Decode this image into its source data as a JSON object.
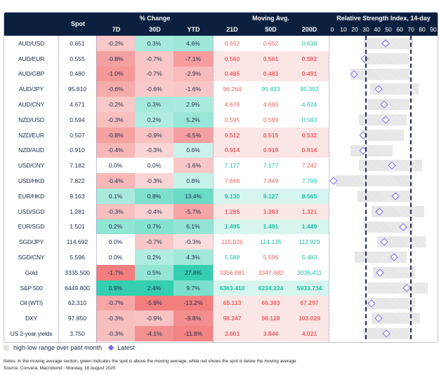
{
  "header": {
    "spot": "Spot",
    "pct_change": "% Change",
    "pct_cols": [
      "7D",
      "30D",
      "YTD"
    ],
    "moving_avg": "Moving Avg.",
    "ma_cols": [
      "21D",
      "50D",
      "200D"
    ],
    "rsi_title": "Relative Strength Index, 14-day",
    "rsi_ticks": [
      "0",
      "10",
      "20",
      "30",
      "40",
      "50",
      "60",
      "70",
      "80",
      "90"
    ]
  },
  "colors": {
    "header_bg": "#0b1f3f",
    "green": "#1ec9a8",
    "red": "#f07070",
    "latest": "#7b68ee"
  },
  "chart_data": {
    "type": "table",
    "rsi_axis": {
      "range": [
        0,
        90
      ],
      "reference_lines": [
        30,
        70
      ]
    },
    "rows": [
      {
        "name": "AUD/USD",
        "spot": "0.651",
        "d7": "-0.2%",
        "d30": "0.3%",
        "ytd": "4.6%",
        "ma21": "0.652",
        "ma50": "0.652",
        "ma200": "0.638",
        "rsi_low": 28,
        "rsi_high": 72,
        "rsi": 47.5
      },
      {
        "name": "AUD/EUR",
        "spot": "0.555",
        "d7": "-0.8%",
        "d30": "-0.7%",
        "ytd": "-7.1%",
        "ma21": "0.560",
        "ma50": "0.561",
        "ma200": "0.582",
        "rsi_low": 29,
        "rsi_high": 69,
        "rsi": 29
      },
      {
        "name": "AUD/GBP",
        "spot": "0.480",
        "d7": "-1.0%",
        "d30": "-0.7%",
        "ytd": "-2.9%",
        "ma21": "0.485",
        "ma50": "0.483",
        "ma200": "0.491",
        "rsi_low": 16,
        "rsi_high": 69,
        "rsi": 19.5
      },
      {
        "name": "AUD/JPY",
        "spot": "95.810",
        "d7": "-0.6%",
        "d30": "-0.6%",
        "ytd": "-1.6%",
        "ma21": "96.264",
        "ma50": "95.493",
        "ma200": "95.302",
        "rsi_low": 34,
        "rsi_high": 77,
        "rsi": 41
      },
      {
        "name": "AUD/CNY",
        "spot": "4.671",
        "d7": "-0.2%",
        "d30": "0.3%",
        "ytd": "2.9%",
        "ma21": "4.678",
        "ma50": "4.680",
        "ma200": "4.624",
        "rsi_low": 31,
        "rsi_high": 69,
        "rsi": 46
      },
      {
        "name": "NZD/USD",
        "spot": "0.594",
        "d7": "-0.3%",
        "d30": "0.2%",
        "ytd": "5.2%",
        "ma21": "0.595",
        "ma50": "0.599",
        "ma200": "0.583",
        "rsi_low": 24,
        "rsi_high": 66,
        "rsi": 47.5
      },
      {
        "name": "NZD/EUR",
        "spot": "0.507",
        "d7": "-0.8%",
        "d30": "-0.9%",
        "ytd": "-6.5%",
        "ma21": "0.512",
        "ma50": "0.515",
        "ma200": "0.532",
        "rsi_low": 27,
        "rsi_high": 64,
        "rsi": 27.5
      },
      {
        "name": "NZD/AUD",
        "spot": "0.910",
        "d7": "-0.4%",
        "d30": "-0.3%",
        "ytd": "0.6%",
        "ma21": "0.914",
        "ma50": "0.919",
        "ma200": "0.914",
        "rsi_low": 16,
        "rsi_high": 54,
        "rsi": 27.5
      },
      {
        "name": "USD/CNY",
        "spot": "7.182",
        "d7": "0.0%",
        "d30": "0.0%",
        "ytd": "-1.6%",
        "ma21": "7.177",
        "ma50": "7.177",
        "ma200": "7.242",
        "rsi_low": 24,
        "rsi_high": 80,
        "rsi": 53
      },
      {
        "name": "USD/HKD",
        "spot": "7.822",
        "d7": "-0.4%",
        "d30": "-0.3%",
        "ytd": "0.8%",
        "ma21": "7.848",
        "ma50": "7.849",
        "ma200": "7.799",
        "rsi_low": 3,
        "rsi_high": 70,
        "rsi": 1
      },
      {
        "name": "EUR/HKD",
        "spot": "9.163",
        "d7": "0.1%",
        "d30": "0.8%",
        "ytd": "13.4%",
        "ma21": "9.130",
        "ma50": "9.127",
        "ma200": "8.565",
        "rsi_low": 22.5,
        "rsi_high": 70.5,
        "rsi": 56
      },
      {
        "name": "USD/SGD",
        "spot": "1.281",
        "d7": "-0.3%",
        "d30": "-0.4%",
        "ytd": "-5.7%",
        "ma21": "1.285",
        "ma50": "1.283",
        "ma200": "1.321",
        "rsi_low": 35,
        "rsi_high": 82,
        "rsi": 42
      },
      {
        "name": "EUR/SGD",
        "spot": "1.501",
        "d7": "0.2%",
        "d30": "0.7%",
        "ytd": "6.1%",
        "ma21": "1.495",
        "ma50": "1.491",
        "ma200": "1.449",
        "rsi_low": 28,
        "rsi_high": 72,
        "rsi": 63
      },
      {
        "name": "SGD/JPY",
        "spot": "114.692",
        "d7": "0.0%",
        "d30": "-0.7%",
        "ytd": "-0.3%",
        "ma21": "115.026",
        "ma50": "114.135",
        "ma200": "112.929",
        "rsi_low": 40,
        "rsi_high": 83,
        "rsi": 46
      },
      {
        "name": "SGD/CNY",
        "spot": "5.596",
        "d7": "0.0%",
        "d30": "0.2%",
        "ytd": "4.3%",
        "ma21": "5.588",
        "ma50": "5.596",
        "ma200": "5.483",
        "rsi_low": 20,
        "rsi_high": 66,
        "rsi": 55
      },
      {
        "name": "Gold",
        "spot": "3335.500",
        "d7": "-1.7%",
        "d30": "0.5%",
        "ytd": "27.8%",
        "ma21": "3356.881",
        "ma50": "3347.682",
        "ma200": "3036.411",
        "rsi_low": 36,
        "rsi_high": 74,
        "rsi": 42.5
      },
      {
        "name": "S&P 500",
        "spot": "6449.800",
        "d7": "0.9%",
        "d30": "2.4%",
        "ytd": "9.7%",
        "ma21": "6363.410",
        "ma50": "6234.224",
        "ma200": "5933.734",
        "rsi_low": 31,
        "rsi_high": 85,
        "rsi": 66
      },
      {
        "name": "Oil (WTI)",
        "spot": "62.310",
        "d7": "-0.7%",
        "d30": "-5.9%",
        "ytd": "-13.2%",
        "ma21": "65.113",
        "ma50": "66.383",
        "ma200": "67.297",
        "rsi_low": 29,
        "rsi_high": 74,
        "rsi": 35
      },
      {
        "name": "DXY",
        "spot": "97.850",
        "d7": "-0.3%",
        "d30": "-0.9%",
        "ytd": "-9.8%",
        "ma21": "98.347",
        "ma50": "98.128",
        "ma200": "103.029",
        "rsi_low": 35,
        "rsi_high": 78,
        "rsi": 41
      },
      {
        "name": "US 2-year yields",
        "spot": "3.750",
        "d7": "-0.3%",
        "d30": "-4.1%",
        "ytd": "-11.8%",
        "ma21": "3.801",
        "ma50": "3.844",
        "ma200": "4.021",
        "rsi_low": 27.5,
        "rsi_high": 70,
        "rsi": 48
      }
    ]
  },
  "legend": {
    "range_label": "high-low range over past month",
    "latest_label": "Latest"
  },
  "notes": "Notes: In the moving average section, green indicates the spot is above the moving average, while red shows the spot is below the moving average",
  "source": "Source: Convera, Macrobond - Monday, 18 August 2025"
}
